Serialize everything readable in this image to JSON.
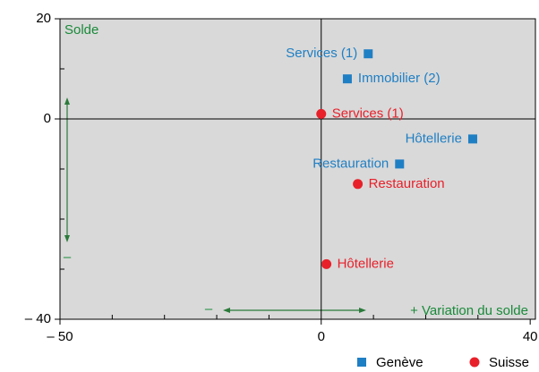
{
  "chart_data": {
    "type": "scatter",
    "ylabel": "Solde",
    "xlabel": "+ Variation du solde",
    "annotations": [
      "–",
      "–"
    ],
    "xlim": [
      -50,
      41
    ],
    "ylim": [
      -40,
      20
    ],
    "xticks": [
      {
        "value": -50,
        "label": "– 50"
      },
      0,
      40
    ],
    "yticks": [
      20,
      0,
      {
        "value": -40,
        "label": "– 40"
      }
    ],
    "xminor_ticks": [
      -40,
      -30,
      -20,
      -10,
      10,
      20,
      30
    ],
    "yminor_ticks": [
      10,
      -10,
      -20,
      -30
    ],
    "series": [
      {
        "name": "Genève",
        "color": "#1f7fc4",
        "marker": "square",
        "x": [
          9,
          5,
          29,
          15
        ],
        "values": [
          13,
          8,
          -4,
          -9
        ],
        "labels": [
          "Services (1)",
          "Immobilier (2)",
          "Hôtellerie",
          "Restauration"
        ]
      },
      {
        "name": "Suisse",
        "color": "#e8202a",
        "marker": "circle",
        "x": [
          0,
          7,
          1
        ],
        "values": [
          1,
          -13,
          -29
        ],
        "labels": [
          "Services (1)",
          "Restauration",
          "Hôtellerie"
        ]
      }
    ]
  }
}
